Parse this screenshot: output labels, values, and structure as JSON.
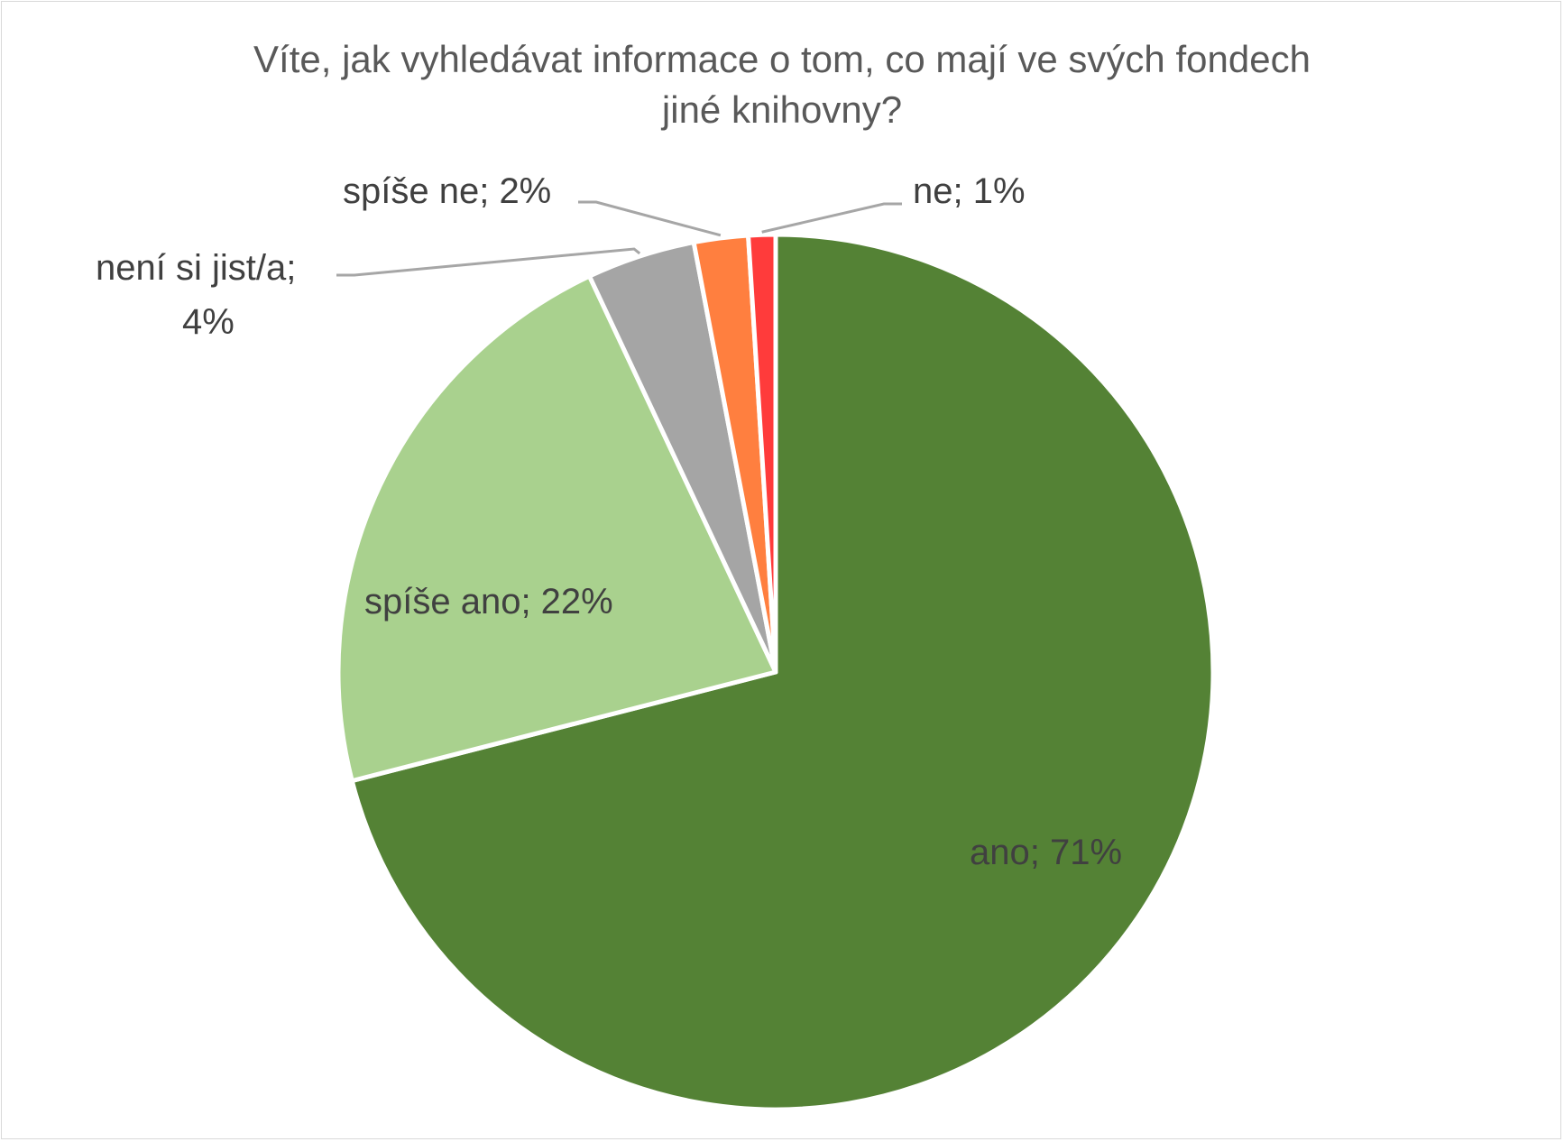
{
  "chart_data": {
    "type": "pie",
    "title": "Víte, jak vyhledávat informace o tom, co mají ve svých fondech\njiné knihovny?",
    "slices": [
      {
        "category": "ano",
        "value": 71,
        "label": "ano; 71%",
        "color": "#548235"
      },
      {
        "category": "spíše ano",
        "value": 22,
        "label": "spíše ano; 22%",
        "color": "#a9d18e"
      },
      {
        "category": "není si jist/a",
        "value": 4,
        "label": "není si jist/a;",
        "label_line2": "4%",
        "color": "#a5a5a5"
      },
      {
        "category": "spíše ne",
        "value": 2,
        "label": "spíše ne; 2%",
        "color": "#ff7f3f"
      },
      {
        "category": "ne",
        "value": 1,
        "label": "ne; 1%",
        "color": "#ff3b3b"
      }
    ],
    "legend": false,
    "start_angle": "12 o'clock",
    "direction": "clockwise"
  }
}
